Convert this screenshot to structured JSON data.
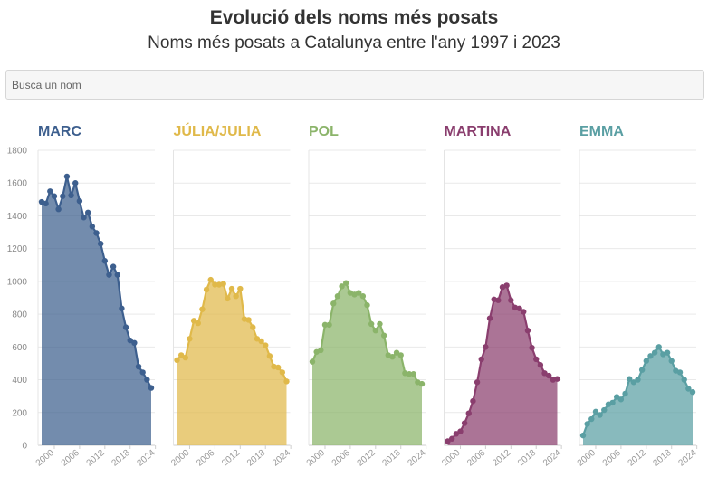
{
  "header": {
    "title": "Evolució dels noms més posats",
    "subtitle": "Noms més posats a Catalunya entre l'any 1997 i 2023"
  },
  "search": {
    "placeholder": "Busca un nom",
    "value": ""
  },
  "chart_data": {
    "type": "area",
    "x_range": [
      1997,
      2023
    ],
    "ylim": [
      0,
      1800
    ],
    "yticks": [
      0,
      200,
      400,
      600,
      800,
      1000,
      1200,
      1400,
      1600,
      1800
    ],
    "xticks": [
      2000,
      2006,
      2012,
      2018,
      2024
    ],
    "grid": true,
    "series": [
      {
        "name": "MARC",
        "color": "#3d5f8e",
        "values": [
          1485,
          1475,
          1550,
          1520,
          1440,
          1520,
          1640,
          1525,
          1600,
          1490,
          1390,
          1420,
          1335,
          1295,
          1230,
          1125,
          1040,
          1090,
          1040,
          835,
          720,
          640,
          625,
          480,
          445,
          400,
          350
        ]
      },
      {
        "name": "JÚLIA/JULIA",
        "color": "#e0b94a",
        "values": [
          520,
          550,
          535,
          650,
          760,
          745,
          830,
          950,
          1010,
          980,
          980,
          985,
          895,
          955,
          910,
          955,
          770,
          765,
          720,
          650,
          635,
          610,
          545,
          480,
          475,
          445,
          390
        ]
      },
      {
        "name": "POL",
        "color": "#8bb46a",
        "values": [
          510,
          570,
          580,
          735,
          735,
          865,
          910,
          970,
          990,
          930,
          920,
          930,
          910,
          855,
          740,
          700,
          740,
          670,
          550,
          540,
          565,
          550,
          440,
          435,
          435,
          385,
          375
        ]
      },
      {
        "name": "MARTINA",
        "color": "#8a3e6e",
        "values": [
          25,
          40,
          70,
          85,
          135,
          195,
          270,
          385,
          525,
          600,
          775,
          890,
          885,
          965,
          975,
          885,
          840,
          835,
          815,
          700,
          595,
          525,
          490,
          440,
          425,
          400,
          405
        ]
      },
      {
        "name": "EMMA",
        "color": "#5a9fa3",
        "values": [
          60,
          130,
          160,
          205,
          185,
          215,
          250,
          260,
          295,
          280,
          315,
          405,
          385,
          400,
          460,
          515,
          545,
          565,
          600,
          555,
          565,
          515,
          455,
          445,
          400,
          345,
          325
        ]
      }
    ]
  }
}
